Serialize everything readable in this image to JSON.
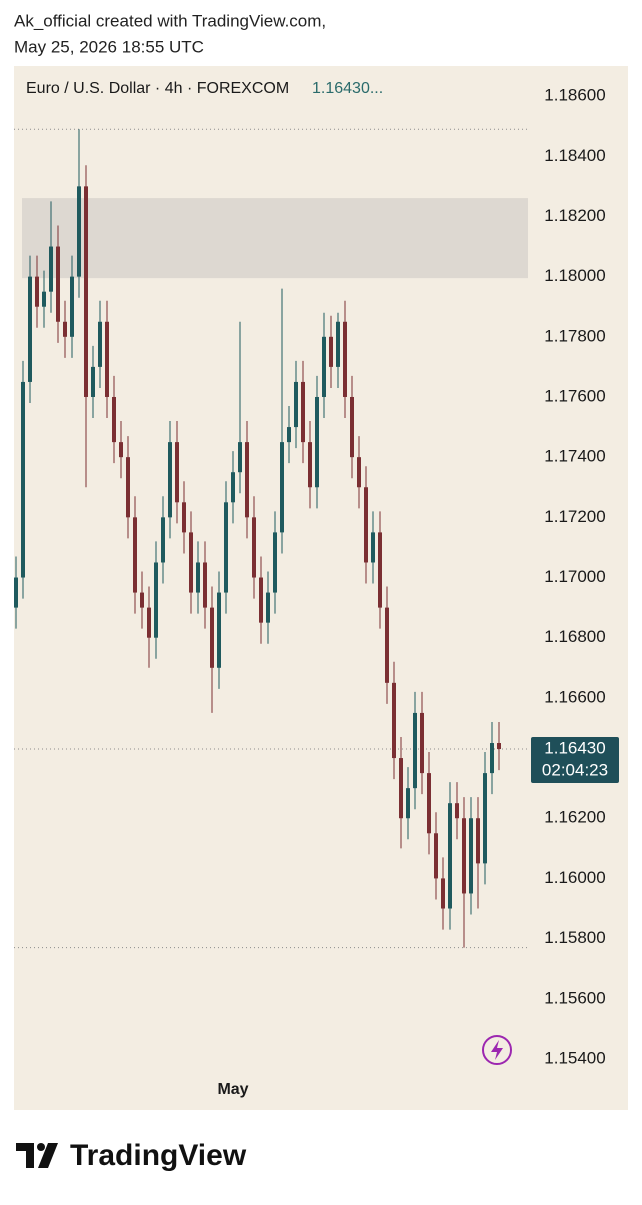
{
  "header": {
    "line1": "Ak_official created with TradingView.com,",
    "line2": "May 25, 2026 18:55 UTC"
  },
  "chart_data": {
    "type": "candlestick",
    "title": "Euro / U.S. Dollar · 4h · FOREXCOM",
    "header_price": "1.16430...",
    "up_color": "#1f5a5e",
    "down_color": "#7b2f33",
    "categories": [
      null,
      null,
      null,
      null,
      null,
      null,
      null,
      null,
      null,
      null,
      null,
      null,
      null,
      null,
      null,
      null,
      null,
      null,
      null,
      null,
      null,
      null,
      null,
      null,
      null,
      null,
      null,
      null,
      null,
      null,
      null,
      "May",
      null,
      null,
      null,
      null,
      null,
      null,
      null,
      null,
      null,
      null,
      null,
      null,
      null,
      null,
      null,
      null,
      null,
      null,
      null,
      null,
      null,
      null,
      null,
      null,
      null,
      null,
      null,
      null,
      null,
      null,
      null,
      null,
      null,
      null,
      null,
      null,
      null,
      null
    ],
    "open": [
      1.169,
      1.17,
      1.1765,
      1.18,
      1.179,
      1.1795,
      1.181,
      1.1785,
      1.178,
      1.18,
      1.183,
      1.176,
      1.177,
      1.1785,
      1.176,
      1.1745,
      1.174,
      1.172,
      1.1695,
      1.169,
      1.168,
      1.1705,
      1.172,
      1.1745,
      1.1725,
      1.1715,
      1.1695,
      1.1705,
      1.169,
      1.167,
      1.1695,
      1.1725,
      1.1735,
      1.1745,
      1.172,
      1.17,
      1.1685,
      1.1695,
      1.1715,
      1.1745,
      1.175,
      1.1765,
      1.1745,
      1.173,
      1.176,
      1.178,
      1.177,
      1.1785,
      1.176,
      1.174,
      1.173,
      1.1705,
      1.1715,
      1.169,
      1.1665,
      1.164,
      1.162,
      1.163,
      1.1655,
      1.1635,
      1.1615,
      1.16,
      1.159,
      1.1625,
      1.162,
      1.1595,
      1.162,
      1.1605,
      1.1635,
      1.1645
    ],
    "high": [
      1.1707,
      1.1772,
      1.1807,
      1.1807,
      1.1802,
      1.1825,
      1.1817,
      1.1792,
      1.1807,
      1.1849,
      1.1837,
      1.1777,
      1.1792,
      1.1792,
      1.1767,
      1.1752,
      1.1747,
      1.1727,
      1.1702,
      1.1697,
      1.1712,
      1.1727,
      1.1752,
      1.1752,
      1.1732,
      1.1722,
      1.1712,
      1.1712,
      1.1697,
      1.1702,
      1.1732,
      1.1742,
      1.1785,
      1.1752,
      1.1727,
      1.1707,
      1.1702,
      1.1722,
      1.1796,
      1.1757,
      1.1772,
      1.1772,
      1.1752,
      1.1767,
      1.1788,
      1.1787,
      1.1788,
      1.1792,
      1.1767,
      1.1747,
      1.1737,
      1.1722,
      1.1722,
      1.1697,
      1.1672,
      1.1647,
      1.1637,
      1.1662,
      1.1662,
      1.1642,
      1.1622,
      1.1607,
      1.1632,
      1.1632,
      1.1627,
      1.1627,
      1.1627,
      1.1642,
      1.1652,
      1.1652
    ],
    "low": [
      1.1683,
      1.1693,
      1.1758,
      1.1783,
      1.1783,
      1.1788,
      1.1778,
      1.1773,
      1.1773,
      1.1793,
      1.173,
      1.1753,
      1.1763,
      1.1753,
      1.1738,
      1.1733,
      1.1713,
      1.1688,
      1.1683,
      1.167,
      1.1673,
      1.1698,
      1.1713,
      1.1718,
      1.1708,
      1.1688,
      1.1688,
      1.1683,
      1.1655,
      1.1663,
      1.1688,
      1.1718,
      1.1728,
      1.1713,
      1.1693,
      1.1678,
      1.1678,
      1.1688,
      1.1708,
      1.1738,
      1.1743,
      1.1738,
      1.1723,
      1.1723,
      1.1753,
      1.1763,
      1.1763,
      1.1753,
      1.1733,
      1.1723,
      1.1698,
      1.1698,
      1.1683,
      1.1658,
      1.1633,
      1.161,
      1.1613,
      1.1623,
      1.1628,
      1.1608,
      1.1593,
      1.1583,
      1.1583,
      1.1613,
      1.1577,
      1.1588,
      1.159,
      1.1598,
      1.1628,
      1.1636
    ],
    "close": [
      1.17,
      1.1765,
      1.18,
      1.179,
      1.1795,
      1.181,
      1.1785,
      1.178,
      1.18,
      1.183,
      1.176,
      1.177,
      1.1785,
      1.176,
      1.1745,
      1.174,
      1.172,
      1.1695,
      1.169,
      1.168,
      1.1705,
      1.172,
      1.1745,
      1.1725,
      1.1715,
      1.1695,
      1.1705,
      1.169,
      1.167,
      1.1695,
      1.1725,
      1.1735,
      1.1745,
      1.172,
      1.17,
      1.1685,
      1.1695,
      1.1715,
      1.1745,
      1.175,
      1.1765,
      1.1745,
      1.173,
      1.176,
      1.178,
      1.177,
      1.1785,
      1.176,
      1.174,
      1.173,
      1.1705,
      1.1715,
      1.169,
      1.1665,
      1.164,
      1.162,
      1.163,
      1.1655,
      1.1635,
      1.1615,
      1.16,
      1.159,
      1.1625,
      1.162,
      1.1595,
      1.162,
      1.1605,
      1.1635,
      1.1645,
      1.1643
    ],
    "ylim": [
      1.1535,
      1.187
    ],
    "yticks": [
      {
        "value": 1.186,
        "label": "1.18600"
      },
      {
        "value": 1.184,
        "label": "1.18400"
      },
      {
        "value": 1.182,
        "label": "1.18200"
      },
      {
        "value": 1.18,
        "label": "1.18000"
      },
      {
        "value": 1.178,
        "label": "1.17800"
      },
      {
        "value": 1.176,
        "label": "1.17600"
      },
      {
        "value": 1.174,
        "label": "1.17400"
      },
      {
        "value": 1.172,
        "label": "1.17200"
      },
      {
        "value": 1.17,
        "label": "1.17000"
      },
      {
        "value": 1.168,
        "label": "1.16800"
      },
      {
        "value": 1.166,
        "label": "1.16600"
      },
      {
        "value": 1.164,
        "label": "1.16400"
      },
      {
        "value": 1.162,
        "label": "1.16200"
      },
      {
        "value": 1.16,
        "label": "1.16000"
      },
      {
        "value": 1.158,
        "label": "1.15800"
      },
      {
        "value": 1.156,
        "label": "1.15600"
      },
      {
        "value": 1.154,
        "label": "1.15400"
      }
    ],
    "zone": [
      1.17995,
      1.18261
    ],
    "zone_color": "#ddd8d1",
    "levels": [
      1.1849,
      1.1577
    ],
    "last_price": {
      "value": 1.1643,
      "label": "1.16430",
      "countdown": "02:04:23",
      "color": "#1f4f59"
    },
    "grid": false
  },
  "footer": {
    "brand": "TradingView"
  }
}
